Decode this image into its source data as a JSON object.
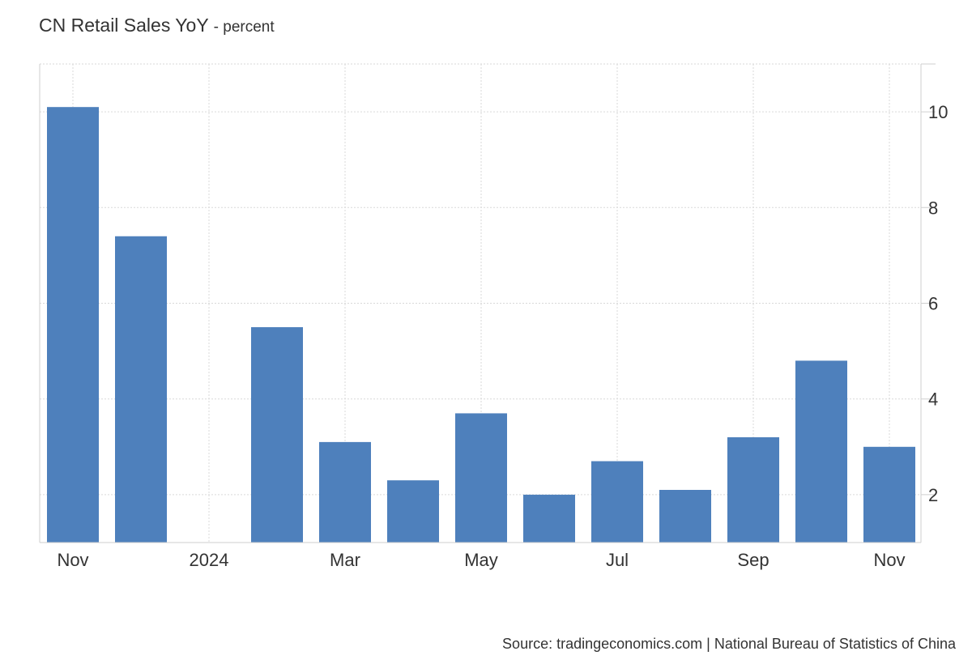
{
  "header": {
    "title": "CN Retail Sales YoY",
    "subtitle": "- percent"
  },
  "footer": {
    "source": "Source: tradingeconomics.com | National Bureau of Statistics of China"
  },
  "chart_data": {
    "type": "bar",
    "title": "CN Retail Sales YoY",
    "subtitle": "- percent",
    "xlabel": "",
    "ylabel": "",
    "y_axis_side": "right",
    "ylim": [
      1,
      11
    ],
    "yticks": [
      2,
      4,
      6,
      8,
      10
    ],
    "grid": true,
    "bar_color": "#4e80bc",
    "categories": [
      "Nov 2023",
      "Dec 2023",
      "Jan 2024",
      "Feb 2024",
      "Mar 2024",
      "Apr 2024",
      "May 2024",
      "Jun 2024",
      "Jul 2024",
      "Aug 2024",
      "Sep 2024",
      "Oct 2024",
      "Nov 2024"
    ],
    "values": [
      10.1,
      7.4,
      null,
      5.5,
      3.1,
      2.3,
      3.7,
      2.0,
      2.7,
      2.1,
      3.2,
      4.8,
      3.0
    ],
    "xtick_labels": [
      {
        "index": 0,
        "label": "Nov"
      },
      {
        "index": 2,
        "label": "2024"
      },
      {
        "index": 4,
        "label": "Mar"
      },
      {
        "index": 6,
        "label": "May"
      },
      {
        "index": 8,
        "label": "Jul"
      },
      {
        "index": 10,
        "label": "Sep"
      },
      {
        "index": 12,
        "label": "Nov"
      }
    ]
  }
}
